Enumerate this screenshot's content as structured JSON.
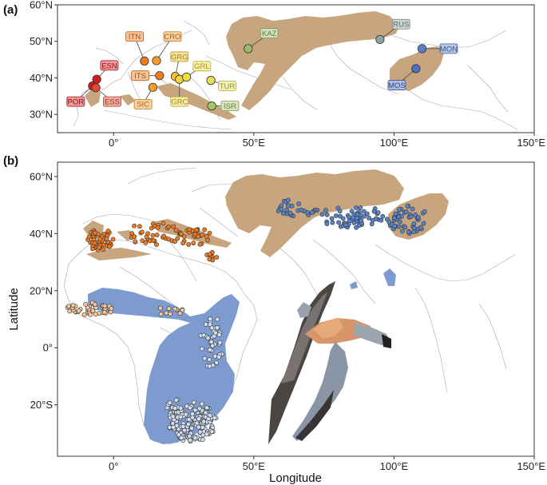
{
  "figure": {
    "panel_a_letter": "(a)",
    "panel_b_letter": "(b)",
    "xlabel": "Longitude",
    "ylabel": "Latitude"
  },
  "panel_a": {
    "lon_range": [
      -20,
      150
    ],
    "lat_range": [
      25,
      60
    ],
    "yticks": [
      {
        "lat": 30,
        "label": "30°N"
      },
      {
        "lat": 40,
        "label": "40°N"
      },
      {
        "lat": 50,
        "label": "50°N"
      },
      {
        "lat": 60,
        "label": "60°N"
      }
    ],
    "xticks": [
      {
        "lon": 0,
        "label": "0°"
      },
      {
        "lon": 50,
        "label": "50°E"
      },
      {
        "lon": 100,
        "label": "100°E"
      },
      {
        "lon": 150,
        "label": "150°E"
      }
    ],
    "populations": [
      {
        "code": "POR",
        "lon": -7.5,
        "lat": 37.8,
        "color": "#d7191c",
        "label_lon": -13.5,
        "label_lat": 33.5
      },
      {
        "code": "ESN",
        "lon": -6.0,
        "lat": 39.6,
        "color": "#d7191c",
        "label_lon": -1.5,
        "label_lat": 43.4
      },
      {
        "code": "ESS",
        "lon": -6.3,
        "lat": 37.3,
        "color": "#e34a33",
        "label_lon": -0.5,
        "label_lat": 33.5
      },
      {
        "code": "ITN",
        "lon": 11.0,
        "lat": 44.6,
        "color": "#f07c1c",
        "label_lon": 7.5,
        "label_lat": 51.3
      },
      {
        "code": "CRO",
        "lon": 15.3,
        "lat": 44.7,
        "color": "#f59a2b",
        "label_lon": 21.0,
        "label_lat": 51.3
      },
      {
        "code": "ITS",
        "lon": 16.4,
        "lat": 40.6,
        "color": "#f07c1c",
        "label_lon": 9.5,
        "label_lat": 40.6
      },
      {
        "code": "SIC",
        "lon": 14.0,
        "lat": 37.4,
        "color": "#f59a2b",
        "label_lon": 10.5,
        "label_lat": 32.8
      },
      {
        "code": "GRG",
        "lon": 22.0,
        "lat": 40.4,
        "color": "#f7c229",
        "label_lon": 23.5,
        "label_lat": 45.8
      },
      {
        "code": "GRC",
        "lon": 23.5,
        "lat": 39.6,
        "color": "#f7d43a",
        "label_lon": 23.5,
        "label_lat": 33.5
      },
      {
        "code": "GRL",
        "lon": 26.0,
        "lat": 40.2,
        "color": "#f1e23a",
        "label_lon": 31.5,
        "label_lat": 43.2
      },
      {
        "code": "TUR",
        "lon": 34.7,
        "lat": 39.3,
        "color": "#e4e055",
        "label_lon": 40.5,
        "label_lat": 37.8
      },
      {
        "code": "ISR",
        "lon": 35.0,
        "lat": 32.3,
        "color": "#a8c46a",
        "label_lon": 41.5,
        "label_lat": 32.3
      },
      {
        "code": "KAZ",
        "lon": 48.0,
        "lat": 48.0,
        "color": "#9ebc6a",
        "label_lon": 55.5,
        "label_lat": 52.2
      },
      {
        "code": "RUS",
        "lon": 95.0,
        "lat": 50.5,
        "color": "#8ba49e",
        "label_lon": 102.5,
        "label_lat": 54.7
      },
      {
        "code": "MON",
        "lon": 110.0,
        "lat": 48.0,
        "color": "#5a80c9",
        "label_lon": 119.5,
        "label_lat": 48.0
      },
      {
        "code": "MOS",
        "lon": 107.8,
        "lat": 42.5,
        "color": "#4d6fc4",
        "label_lon": 101.0,
        "label_lat": 38.0
      }
    ]
  },
  "panel_b": {
    "lon_range": [
      -20,
      150
    ],
    "lat_range": [
      -38,
      65
    ],
    "yticks": [
      {
        "lat": -20,
        "label": "20°S"
      },
      {
        "lat": 0,
        "label": "0°"
      },
      {
        "lat": 20,
        "label": "20°N"
      },
      {
        "lat": 40,
        "label": "40°N"
      },
      {
        "lat": 60,
        "label": "60°N"
      }
    ],
    "xticks": [
      {
        "lon": 0,
        "label": "0°"
      },
      {
        "lon": 50,
        "label": "50°E"
      },
      {
        "lon": 100,
        "label": "100°E"
      },
      {
        "lon": 150,
        "label": "150°E"
      }
    ]
  },
  "colors": {
    "breeding_range": "#c7a57f",
    "wintering_range": "#7d9bce",
    "eastern_points": "#5a84c9",
    "western_points": "#ef7a22",
    "sahel_points": "#f6c8a0",
    "african_points": "#d4dff2"
  }
}
